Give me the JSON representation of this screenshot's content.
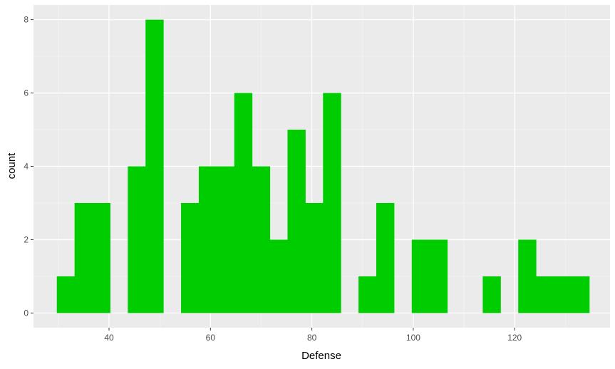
{
  "chart_data": {
    "type": "bar",
    "title": "",
    "xlabel": "Defense",
    "ylabel": "count",
    "xlim": [
      25.1,
      138.8
    ],
    "ylim": [
      -0.4,
      8.4
    ],
    "x_ticks": [
      40,
      60,
      80,
      100,
      120
    ],
    "y_ticks": [
      0,
      2,
      4,
      6,
      8
    ],
    "grid": true,
    "legend": "none",
    "bin_width": 3.5,
    "bins": [
      {
        "x0": 29.7,
        "x1": 33.2,
        "count": 1
      },
      {
        "x0": 33.2,
        "x1": 36.7,
        "count": 3
      },
      {
        "x0": 36.7,
        "x1": 40.2,
        "count": 3
      },
      {
        "x0": 40.2,
        "x1": 43.7,
        "count": 0
      },
      {
        "x0": 43.7,
        "x1": 47.2,
        "count": 4
      },
      {
        "x0": 47.2,
        "x1": 50.7,
        "count": 8
      },
      {
        "x0": 50.7,
        "x1": 54.2,
        "count": 0
      },
      {
        "x0": 54.2,
        "x1": 57.7,
        "count": 3
      },
      {
        "x0": 57.7,
        "x1": 61.2,
        "count": 4
      },
      {
        "x0": 61.2,
        "x1": 64.7,
        "count": 4
      },
      {
        "x0": 64.7,
        "x1": 68.2,
        "count": 6
      },
      {
        "x0": 68.2,
        "x1": 71.7,
        "count": 4
      },
      {
        "x0": 71.7,
        "x1": 75.2,
        "count": 2
      },
      {
        "x0": 75.2,
        "x1": 78.7,
        "count": 5
      },
      {
        "x0": 78.7,
        "x1": 82.2,
        "count": 3
      },
      {
        "x0": 82.2,
        "x1": 85.7,
        "count": 6
      },
      {
        "x0": 85.7,
        "x1": 89.2,
        "count": 0
      },
      {
        "x0": 89.2,
        "x1": 92.7,
        "count": 1
      },
      {
        "x0": 92.7,
        "x1": 96.2,
        "count": 3
      },
      {
        "x0": 96.2,
        "x1": 99.7,
        "count": 0
      },
      {
        "x0": 99.7,
        "x1": 103.2,
        "count": 2
      },
      {
        "x0": 103.2,
        "x1": 106.7,
        "count": 2
      },
      {
        "x0": 106.7,
        "x1": 110.2,
        "count": 0
      },
      {
        "x0": 110.2,
        "x1": 113.7,
        "count": 0
      },
      {
        "x0": 113.7,
        "x1": 117.2,
        "count": 1
      },
      {
        "x0": 117.2,
        "x1": 120.7,
        "count": 0
      },
      {
        "x0": 120.7,
        "x1": 124.2,
        "count": 2
      },
      {
        "x0": 124.2,
        "x1": 127.7,
        "count": 1
      },
      {
        "x0": 127.7,
        "x1": 131.2,
        "count": 1
      },
      {
        "x0": 131.2,
        "x1": 134.7,
        "count": 1
      }
    ],
    "colors": {
      "bar": "#00cd00",
      "panel": "#ebebeb",
      "grid_major": "#ffffff",
      "grid_minor": "#f5f5f5",
      "tick_label": "#4d4d4d",
      "tick_mark": "#333333"
    }
  }
}
